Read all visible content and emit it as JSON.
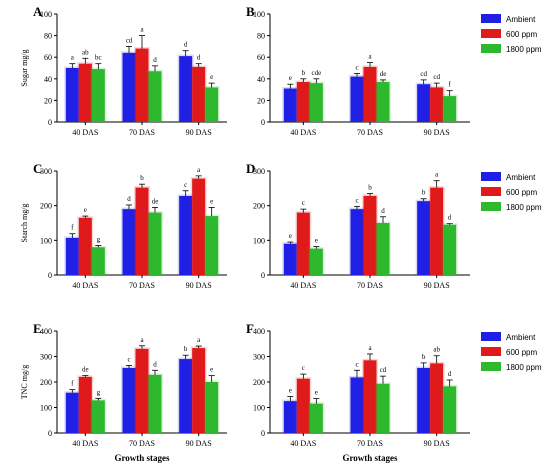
{
  "colors": {
    "Ambient": "#1f1fe6",
    "600 ppm": "#e01a1a",
    "1800 ppm": "#2eb82e"
  },
  "legend_labels": [
    "Ambient",
    "600 ppm",
    "1800 ppm"
  ],
  "xaxis_label": "Growth stages",
  "chart_data": [
    {
      "panel": "A",
      "type": "bar",
      "ylabel": "Sugar mg/g",
      "ylim": [
        0,
        100
      ],
      "yticks": [
        0,
        20,
        40,
        60,
        80,
        100
      ],
      "categories": [
        "40 DAS",
        "70 DAS",
        "90 DAS"
      ],
      "series": [
        {
          "name": "Ambient",
          "values": [
            50,
            64,
            61
          ],
          "errors": [
            4,
            6,
            5
          ],
          "letters": [
            "a",
            "cd",
            "d"
          ]
        },
        {
          "name": "600 ppm",
          "values": [
            54,
            68,
            51
          ],
          "errors": [
            5,
            12,
            3
          ],
          "letters": [
            "ab",
            "a",
            "d"
          ]
        },
        {
          "name": "1800 ppm",
          "values": [
            49,
            47,
            32
          ],
          "errors": [
            5,
            5,
            4
          ],
          "letters": [
            "bc",
            "d",
            "e"
          ]
        }
      ]
    },
    {
      "panel": "B",
      "type": "bar",
      "ylabel": "",
      "ylim": [
        0,
        100
      ],
      "yticks": [
        0,
        20,
        40,
        60,
        80,
        100
      ],
      "categories": [
        "40 DAS",
        "70 DAS",
        "90 DAS"
      ],
      "series": [
        {
          "name": "Ambient",
          "values": [
            31,
            42,
            35
          ],
          "errors": [
            4,
            3,
            4
          ],
          "letters": [
            "e",
            "c",
            "cd"
          ]
        },
        {
          "name": "600 ppm",
          "values": [
            37,
            51,
            32
          ],
          "errors": [
            3,
            4,
            4
          ],
          "letters": [
            "b",
            "a",
            "cd"
          ]
        },
        {
          "name": "1800 ppm",
          "values": [
            36,
            37,
            24
          ],
          "errors": [
            4,
            2,
            5
          ],
          "letters": [
            "cde",
            "de",
            "f"
          ]
        }
      ]
    },
    {
      "panel": "C",
      "type": "bar",
      "ylabel": "Starch mg/g",
      "ylim": [
        0,
        300
      ],
      "yticks": [
        0,
        100,
        200,
        300
      ],
      "categories": [
        "40 DAS",
        "70 DAS",
        "90 DAS"
      ],
      "series": [
        {
          "name": "Ambient",
          "values": [
            107,
            190,
            228
          ],
          "errors": [
            12,
            12,
            15
          ],
          "letters": [
            "f",
            "d",
            "c"
          ]
        },
        {
          "name": "600 ppm",
          "values": [
            165,
            252,
            278
          ],
          "errors": [
            5,
            10,
            8
          ],
          "letters": [
            "e",
            "b",
            "a"
          ]
        },
        {
          "name": "1800 ppm",
          "values": [
            80,
            180,
            170
          ],
          "errors": [
            5,
            15,
            25
          ],
          "letters": [
            "g",
            "de",
            "e"
          ]
        }
      ]
    },
    {
      "panel": "D",
      "type": "bar",
      "ylabel": "",
      "ylim": [
        0,
        300
      ],
      "yticks": [
        0,
        100,
        200,
        300
      ],
      "categories": [
        "40 DAS",
        "70 DAS",
        "90 DAS"
      ],
      "series": [
        {
          "name": "Ambient",
          "values": [
            90,
            190,
            213
          ],
          "errors": [
            5,
            8,
            7
          ],
          "letters": [
            "e",
            "c",
            "b"
          ]
        },
        {
          "name": "600 ppm",
          "values": [
            180,
            228,
            252
          ],
          "errors": [
            10,
            7,
            20
          ],
          "letters": [
            "c",
            "b",
            "a"
          ]
        },
        {
          "name": "1800 ppm",
          "values": [
            76,
            150,
            145
          ],
          "errors": [
            6,
            18,
            3
          ],
          "letters": [
            "e",
            "d",
            "d"
          ]
        }
      ]
    },
    {
      "panel": "E",
      "type": "bar",
      "ylabel": "TNC mg/g",
      "ylim": [
        0,
        400
      ],
      "yticks": [
        0,
        100,
        200,
        300,
        400
      ],
      "categories": [
        "40 DAS",
        "70 DAS",
        "90 DAS"
      ],
      "series": [
        {
          "name": "Ambient",
          "values": [
            158,
            255,
            290
          ],
          "errors": [
            12,
            10,
            15
          ],
          "letters": [
            "f",
            "c",
            "b"
          ]
        },
        {
          "name": "600 ppm",
          "values": [
            220,
            330,
            333
          ],
          "errors": [
            5,
            12,
            8
          ],
          "letters": [
            "de",
            "a",
            "a"
          ]
        },
        {
          "name": "1800 ppm",
          "values": [
            128,
            228,
            200
          ],
          "errors": [
            8,
            18,
            25
          ],
          "letters": [
            "g",
            "d",
            "e"
          ]
        }
      ]
    },
    {
      "panel": "F",
      "type": "bar",
      "ylabel": "",
      "ylim": [
        0,
        400
      ],
      "yticks": [
        0,
        100,
        200,
        300,
        400
      ],
      "categories": [
        "40 DAS",
        "70 DAS",
        "90 DAS"
      ],
      "series": [
        {
          "name": "Ambient",
          "values": [
            125,
            218,
            255
          ],
          "errors": [
            18,
            28,
            20
          ],
          "letters": [
            "e",
            "c",
            "b"
          ]
        },
        {
          "name": "600 ppm",
          "values": [
            213,
            285,
            273
          ],
          "errors": [
            18,
            25,
            30
          ],
          "letters": [
            "c",
            "a",
            "ab"
          ]
        },
        {
          "name": "1800 ppm",
          "values": [
            115,
            193,
            183
          ],
          "errors": [
            20,
            30,
            25
          ],
          "letters": [
            "e",
            "cd",
            "d"
          ]
        }
      ]
    }
  ]
}
